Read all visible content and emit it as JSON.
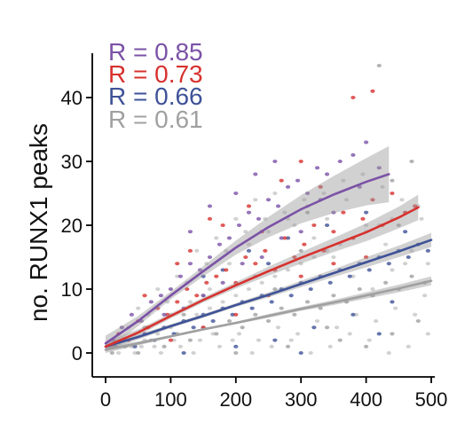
{
  "chart_data": {
    "type": "scatter",
    "ylabel": "no. RUNX1 peaks",
    "xlabel": "",
    "xlim": [
      0,
      500
    ],
    "ylim": [
      0,
      45
    ],
    "x_ticks": [
      "0",
      "100",
      "200",
      "300",
      "400",
      "500"
    ],
    "y_ticks": [
      "0",
      "10",
      "20",
      "30",
      "40"
    ],
    "grid": false,
    "annotations": [
      "R = 0.85",
      "R = 0.73",
      "R = 0.66",
      "R = 0.61"
    ],
    "series": [
      {
        "color": "#7b52a6",
        "r_label": "R = 0.85",
        "x_max": 435,
        "fit": {
          "x": [
            0,
            50,
            100,
            150,
            200,
            250,
            300,
            350,
            400,
            435
          ],
          "y": [
            1.5,
            5.0,
            9.0,
            12.8,
            16.5,
            19.7,
            22.5,
            24.8,
            26.8,
            28.0
          ]
        },
        "ci_halfwidth": [
          1.2,
          0.8,
          0.6,
          0.8,
          1.1,
          1.6,
          2.2,
          2.9,
          3.7,
          4.4
        ],
        "points": [
          [
            12,
            2
          ],
          [
            25,
            4
          ],
          [
            40,
            6
          ],
          [
            55,
            5
          ],
          [
            70,
            8
          ],
          [
            85,
            9
          ],
          [
            100,
            10
          ],
          [
            115,
            12
          ],
          [
            130,
            14
          ],
          [
            145,
            13
          ],
          [
            160,
            15
          ],
          [
            175,
            17
          ],
          [
            190,
            18
          ],
          [
            205,
            20
          ],
          [
            220,
            22
          ],
          [
            235,
            21
          ],
          [
            250,
            24
          ],
          [
            265,
            23
          ],
          [
            280,
            26
          ],
          [
            295,
            27
          ],
          [
            310,
            25
          ],
          [
            325,
            29
          ],
          [
            340,
            28
          ],
          [
            360,
            30
          ],
          [
            380,
            31
          ],
          [
            400,
            33
          ],
          [
            420,
            29
          ],
          [
            60,
            3
          ],
          [
            120,
            7
          ],
          [
            180,
            11
          ],
          [
            240,
            15
          ],
          [
            300,
            19
          ],
          [
            350,
            22
          ],
          [
            210,
            14
          ],
          [
            150,
            9
          ],
          [
            90,
            6
          ],
          [
            270,
            18
          ],
          [
            330,
            24
          ],
          [
            390,
            26
          ],
          [
            130,
            19
          ],
          [
            200,
            25
          ],
          [
            260,
            30
          ],
          [
            160,
            23
          ],
          [
            230,
            28
          ]
        ]
      },
      {
        "color": "#d7312e",
        "r_label": "R = 0.73",
        "x_max": 480,
        "fit": {
          "x": [
            0,
            50,
            100,
            150,
            200,
            250,
            300,
            350,
            400,
            450,
            480
          ],
          "y": [
            1.0,
            3.2,
            5.8,
            8.3,
            10.6,
            12.8,
            14.9,
            16.9,
            18.9,
            21.2,
            22.8
          ]
        },
        "ci_halfwidth": [
          0.8,
          0.5,
          0.4,
          0.4,
          0.5,
          0.7,
          0.9,
          1.1,
          1.4,
          1.7,
          2.0
        ],
        "points": [
          [
            10,
            1
          ],
          [
            20,
            3
          ],
          [
            35,
            2
          ],
          [
            50,
            5
          ],
          [
            65,
            4
          ],
          [
            80,
            7
          ],
          [
            95,
            6
          ],
          [
            110,
            8
          ],
          [
            125,
            10
          ],
          [
            140,
            9
          ],
          [
            155,
            11
          ],
          [
            170,
            12
          ],
          [
            185,
            13
          ],
          [
            200,
            11
          ],
          [
            215,
            15
          ],
          [
            230,
            14
          ],
          [
            245,
            16
          ],
          [
            260,
            13
          ],
          [
            275,
            18
          ],
          [
            290,
            15
          ],
          [
            305,
            17
          ],
          [
            320,
            20
          ],
          [
            335,
            16
          ],
          [
            350,
            19
          ],
          [
            365,
            22
          ],
          [
            380,
            18
          ],
          [
            395,
            21
          ],
          [
            410,
            24
          ],
          [
            425,
            20
          ],
          [
            440,
            25
          ],
          [
            460,
            22
          ],
          [
            475,
            23
          ],
          [
            100,
            2
          ],
          [
            150,
            4
          ],
          [
            200,
            6
          ],
          [
            250,
            9
          ],
          [
            300,
            12
          ],
          [
            350,
            14
          ],
          [
            400,
            15
          ],
          [
            130,
            16
          ],
          [
            180,
            20
          ],
          [
            220,
            23
          ],
          [
            270,
            27
          ],
          [
            300,
            30
          ],
          [
            160,
            21
          ],
          [
            380,
            40
          ],
          [
            410,
            41
          ],
          [
            110,
            14
          ],
          [
            60,
            9
          ],
          [
            240,
            19
          ],
          [
            330,
            26
          ]
        ]
      },
      {
        "color": "#3e5297",
        "r_label": "R = 0.66",
        "x_max": 500,
        "fit": {
          "x": [
            0,
            50,
            100,
            150,
            200,
            250,
            300,
            350,
            400,
            450,
            500
          ],
          "y": [
            1.0,
            2.5,
            4.2,
            5.8,
            7.5,
            9.1,
            10.8,
            12.5,
            14.2,
            15.9,
            17.7
          ]
        },
        "ci_halfwidth": [
          0.6,
          0.4,
          0.3,
          0.3,
          0.3,
          0.4,
          0.5,
          0.6,
          0.8,
          0.9,
          1.1
        ],
        "points": [
          [
            15,
            1
          ],
          [
            30,
            2
          ],
          [
            45,
            1
          ],
          [
            60,
            3
          ],
          [
            75,
            2
          ],
          [
            90,
            4
          ],
          [
            105,
            3
          ],
          [
            120,
            5
          ],
          [
            135,
            4
          ],
          [
            150,
            6
          ],
          [
            165,
            5
          ],
          [
            180,
            7
          ],
          [
            195,
            6
          ],
          [
            210,
            8
          ],
          [
            225,
            7
          ],
          [
            240,
            9
          ],
          [
            255,
            8
          ],
          [
            270,
            10
          ],
          [
            285,
            9
          ],
          [
            300,
            11
          ],
          [
            315,
            10
          ],
          [
            330,
            12
          ],
          [
            345,
            11
          ],
          [
            360,
            13
          ],
          [
            375,
            12
          ],
          [
            390,
            14
          ],
          [
            405,
            13
          ],
          [
            420,
            15
          ],
          [
            435,
            14
          ],
          [
            450,
            16
          ],
          [
            465,
            15
          ],
          [
            480,
            17
          ],
          [
            495,
            16
          ],
          [
            200,
            1
          ],
          [
            260,
            2
          ],
          [
            320,
            4
          ],
          [
            380,
            6
          ],
          [
            440,
            8
          ],
          [
            150,
            12
          ],
          [
            220,
            16
          ],
          [
            280,
            18
          ],
          [
            340,
            20
          ],
          [
            400,
            22
          ],
          [
            460,
            19
          ],
          [
            120,
            0
          ],
          [
            300,
            0
          ],
          [
            420,
            3
          ],
          [
            250,
            14
          ],
          [
            180,
            13
          ]
        ]
      },
      {
        "color": "#a0a0a0",
        "r_label": "R = 0.61",
        "x_max": 500,
        "fit": {
          "x": [
            0,
            50,
            100,
            150,
            200,
            250,
            300,
            350,
            400,
            450,
            500
          ],
          "y": [
            0.5,
            1.5,
            2.6,
            3.7,
            4.7,
            5.8,
            6.9,
            7.9,
            9.0,
            10.1,
            11.3
          ]
        },
        "ci_halfwidth": [
          0.5,
          0.3,
          0.2,
          0.2,
          0.2,
          0.3,
          0.3,
          0.4,
          0.5,
          0.6,
          0.7
        ],
        "points": [
          [
            10,
            0
          ],
          [
            30,
            1
          ],
          [
            50,
            0
          ],
          [
            70,
            2
          ],
          [
            90,
            1
          ],
          [
            110,
            3
          ],
          [
            130,
            2
          ],
          [
            150,
            4
          ],
          [
            170,
            3
          ],
          [
            190,
            5
          ],
          [
            210,
            4
          ],
          [
            230,
            6
          ],
          [
            250,
            5
          ],
          [
            270,
            7
          ],
          [
            290,
            6
          ],
          [
            310,
            8
          ],
          [
            330,
            7
          ],
          [
            350,
            9
          ],
          [
            370,
            8
          ],
          [
            390,
            10
          ],
          [
            410,
            9
          ],
          [
            430,
            11
          ],
          [
            450,
            10
          ],
          [
            470,
            12
          ],
          [
            490,
            11
          ],
          [
            200,
            0
          ],
          [
            280,
            1
          ],
          [
            360,
            2
          ],
          [
            440,
            3
          ],
          [
            480,
            5
          ],
          [
            150,
            9
          ],
          [
            230,
            12
          ],
          [
            300,
            16
          ],
          [
            380,
            18
          ],
          [
            450,
            20
          ],
          [
            420,
            45
          ],
          [
            440,
            27
          ],
          [
            470,
            30
          ],
          [
            310,
            22
          ],
          [
            260,
            10
          ],
          [
            340,
            4
          ],
          [
            400,
            1
          ],
          [
            120,
            6
          ],
          [
            60,
            4
          ]
        ]
      }
    ],
    "background_points": [
      [
        20,
        0
      ],
      [
        40,
        1
      ],
      [
        60,
        2
      ],
      [
        80,
        3
      ],
      [
        100,
        4
      ],
      [
        120,
        5
      ],
      [
        140,
        6
      ],
      [
        160,
        7
      ],
      [
        180,
        8
      ],
      [
        200,
        9
      ],
      [
        220,
        10
      ],
      [
        240,
        11
      ],
      [
        260,
        12
      ],
      [
        280,
        13
      ],
      [
        300,
        14
      ],
      [
        320,
        15
      ],
      [
        340,
        16
      ],
      [
        360,
        17
      ],
      [
        380,
        18
      ],
      [
        400,
        19
      ],
      [
        420,
        20
      ],
      [
        440,
        21
      ],
      [
        460,
        22
      ],
      [
        480,
        23
      ],
      [
        25,
        2
      ],
      [
        55,
        1
      ],
      [
        85,
        0
      ],
      [
        115,
        1
      ],
      [
        145,
        2
      ],
      [
        175,
        1
      ],
      [
        205,
        3
      ],
      [
        235,
        2
      ],
      [
        265,
        4
      ],
      [
        295,
        3
      ],
      [
        325,
        5
      ],
      [
        355,
        4
      ],
      [
        385,
        6
      ],
      [
        415,
        5
      ],
      [
        445,
        7
      ],
      [
        475,
        6
      ],
      [
        35,
        4
      ],
      [
        65,
        6
      ],
      [
        95,
        8
      ],
      [
        125,
        11
      ],
      [
        155,
        14
      ],
      [
        185,
        16
      ],
      [
        215,
        19
      ],
      [
        245,
        21
      ],
      [
        275,
        22
      ],
      [
        305,
        24
      ],
      [
        335,
        25
      ],
      [
        365,
        27
      ],
      [
        395,
        28
      ],
      [
        425,
        26
      ],
      [
        455,
        24
      ],
      [
        485,
        21
      ],
      [
        50,
        7
      ],
      [
        80,
        10
      ],
      [
        110,
        12
      ],
      [
        140,
        16
      ],
      [
        170,
        18
      ],
      [
        200,
        21
      ],
      [
        230,
        24
      ],
      [
        260,
        25
      ],
      [
        290,
        20
      ],
      [
        320,
        18
      ],
      [
        350,
        15
      ],
      [
        380,
        12
      ],
      [
        410,
        10
      ],
      [
        440,
        13
      ],
      [
        470,
        16
      ],
      [
        495,
        14
      ],
      [
        100,
        6
      ],
      [
        130,
        8
      ],
      [
        160,
        10
      ],
      [
        190,
        14
      ],
      [
        220,
        17
      ],
      [
        250,
        19
      ],
      [
        280,
        21
      ],
      [
        310,
        23
      ],
      [
        340,
        21
      ],
      [
        370,
        24
      ],
      [
        400,
        20
      ],
      [
        430,
        17
      ],
      [
        460,
        14
      ],
      [
        490,
        9
      ],
      [
        45,
        0
      ],
      [
        75,
        1
      ],
      [
        105,
        2
      ],
      [
        135,
        0
      ],
      [
        165,
        3
      ],
      [
        195,
        2
      ],
      [
        225,
        0
      ],
      [
        255,
        1
      ],
      [
        285,
        2
      ],
      [
        315,
        0
      ],
      [
        345,
        1
      ],
      [
        375,
        3
      ],
      [
        405,
        2
      ],
      [
        435,
        0
      ],
      [
        465,
        1
      ],
      [
        495,
        3
      ]
    ]
  }
}
